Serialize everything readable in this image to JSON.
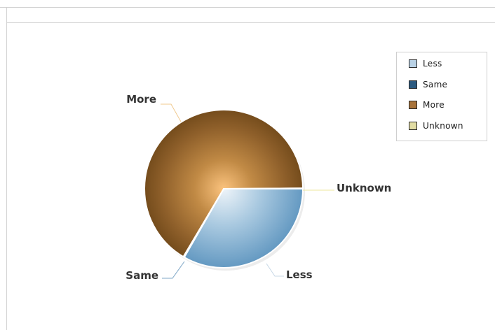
{
  "chart_data": {
    "type": "pie",
    "categories": [
      "Less",
      "Same",
      "More",
      "Unknown"
    ],
    "values": [
      33.3,
      0.2,
      66.4,
      0.1
    ],
    "legend_position": "top-right",
    "colors": {
      "Less": "#7fb0d4",
      "Same": "#2f5f86",
      "More": "#8a5a24",
      "Unknown": "#d8d49a"
    },
    "legend": [
      {
        "label": "Less",
        "color": "#b9d2e6"
      },
      {
        "label": "Same",
        "color": "#2c5a80"
      },
      {
        "label": "More",
        "color": "#a8733a"
      },
      {
        "label": "Unknown",
        "color": "#e1dca3"
      }
    ],
    "slice_labels": {
      "More": "More",
      "Same": "Same",
      "Less": "Less",
      "Unknown": "Unknown"
    }
  }
}
